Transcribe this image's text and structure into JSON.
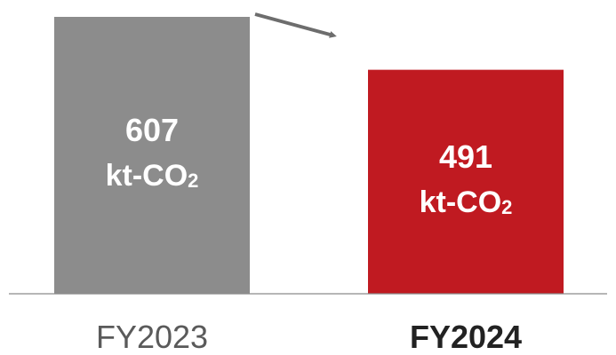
{
  "chart_data": {
    "type": "bar",
    "categories": [
      "FY2023",
      "FY2024"
    ],
    "values": [
      607,
      491
    ],
    "unit": "kt-CO",
    "unit_subscript": "2",
    "colors": [
      "#8c8c8c",
      "#c01a21"
    ],
    "highlight_category": "FY2024",
    "grid": false,
    "legend": "none",
    "ylim": [
      0,
      607
    ],
    "annotation": "arrow-from-FY2023-to-FY2024"
  }
}
